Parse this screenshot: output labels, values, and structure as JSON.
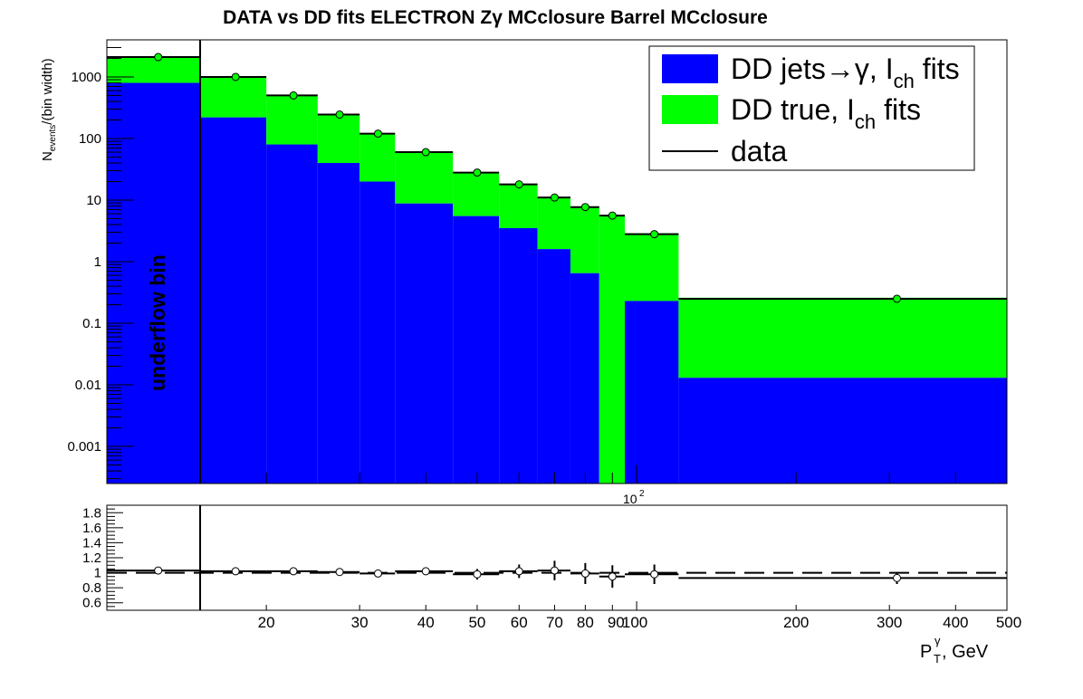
{
  "chart_data": {
    "type": "bar",
    "title": "DATA vs DD fits ELECTRON Zγ  MCclosure Barrel  MCclosure",
    "ylabel": {
      "main": "N",
      "sub": "events",
      "rest": "/(bin width)"
    },
    "xlabel": {
      "main": "P",
      "sup": "γ",
      "sub": "T",
      "rest": ", GeV"
    },
    "underflow_label": "underflow bin",
    "log_exponent_label": {
      "base": "10",
      "exp": "2"
    },
    "x_scale": "log",
    "y_scale": "log",
    "x_range": [
      10,
      500
    ],
    "y_range": [
      0.00025,
      4000
    ],
    "ratio_range": [
      0.5,
      1.9
    ],
    "x_tick_labels": [
      "20",
      "30",
      "40",
      "50",
      "60",
      "70",
      "80",
      "90",
      "100",
      "200",
      "300",
      "400",
      "500"
    ],
    "y_tick_labels": [
      "1000",
      "100",
      "10",
      "1",
      "0.1",
      "0.01",
      "0.001"
    ],
    "ratio_tick_labels": [
      "1.8",
      "1.6",
      "1.4",
      "1.2",
      "1",
      "0.8",
      "0.6"
    ],
    "underflow_edge": 15,
    "bins": [
      {
        "lo": 10,
        "hi": 15,
        "jets": 800,
        "total": 2100,
        "data": 2100,
        "ratio": 1.03,
        "ratio_err": 0.01
      },
      {
        "lo": 15,
        "hi": 20,
        "jets": 220,
        "total": 1000,
        "data": 1000,
        "ratio": 1.02,
        "ratio_err": 0.01
      },
      {
        "lo": 20,
        "hi": 25,
        "jets": 80,
        "total": 500,
        "data": 500,
        "ratio": 1.02,
        "ratio_err": 0.02
      },
      {
        "lo": 25,
        "hi": 30,
        "jets": 40,
        "total": 245,
        "data": 245,
        "ratio": 1.01,
        "ratio_err": 0.02
      },
      {
        "lo": 30,
        "hi": 35,
        "jets": 20,
        "total": 120,
        "data": 120,
        "ratio": 0.99,
        "ratio_err": 0.03
      },
      {
        "lo": 35,
        "hi": 45,
        "jets": 8.8,
        "total": 60,
        "data": 60,
        "ratio": 1.02,
        "ratio_err": 0.04
      },
      {
        "lo": 45,
        "hi": 55,
        "jets": 5.5,
        "total": 28,
        "data": 28,
        "ratio": 0.98,
        "ratio_err": 0.07
      },
      {
        "lo": 55,
        "hi": 65,
        "jets": 3.5,
        "total": 18,
        "data": 18,
        "ratio": 1.02,
        "ratio_err": 0.09
      },
      {
        "lo": 65,
        "hi": 75,
        "jets": 1.6,
        "total": 11,
        "data": 11,
        "ratio": 1.03,
        "ratio_err": 0.13
      },
      {
        "lo": 75,
        "hi": 85,
        "jets": 0.65,
        "total": 7.7,
        "data": 7.7,
        "ratio": 0.99,
        "ratio_err": 0.14
      },
      {
        "lo": 85,
        "hi": 95,
        "jets": 0,
        "total": 5.6,
        "data": 5.6,
        "ratio": 0.95,
        "ratio_err": 0.15
      },
      {
        "lo": 95,
        "hi": 120,
        "jets": 0.23,
        "total": 2.9,
        "data": 2.8,
        "ratio": 0.98,
        "ratio_err": 0.13
      },
      {
        "lo": 120,
        "hi": 500,
        "jets": 0.013,
        "total": 0.26,
        "data": 0.25,
        "ratio": 0.93,
        "ratio_err": 0.08
      }
    ],
    "data_point_x": [
      12.5,
      17.5,
      22.5,
      27.5,
      32.5,
      40,
      50,
      60,
      70,
      80,
      90,
      108,
      310
    ],
    "series": [
      {
        "name": "DD jets→γ, I_ch fits",
        "color": "#0000ff"
      },
      {
        "name": "DD true, I_ch fits",
        "color": "#00ff00"
      },
      {
        "name": "data",
        "color": "#000000"
      }
    ],
    "legend": {
      "position": "top-right",
      "entries": [
        {
          "pre": "DD jets→γ, I",
          "sub": "ch",
          "post": " fits",
          "color": "#0000ff"
        },
        {
          "pre": "DD true, I",
          "sub": "ch",
          "post": " fits",
          "color": "#00ff00"
        },
        {
          "pre": "data",
          "sub": "",
          "post": "",
          "color": "#000000"
        }
      ]
    }
  }
}
